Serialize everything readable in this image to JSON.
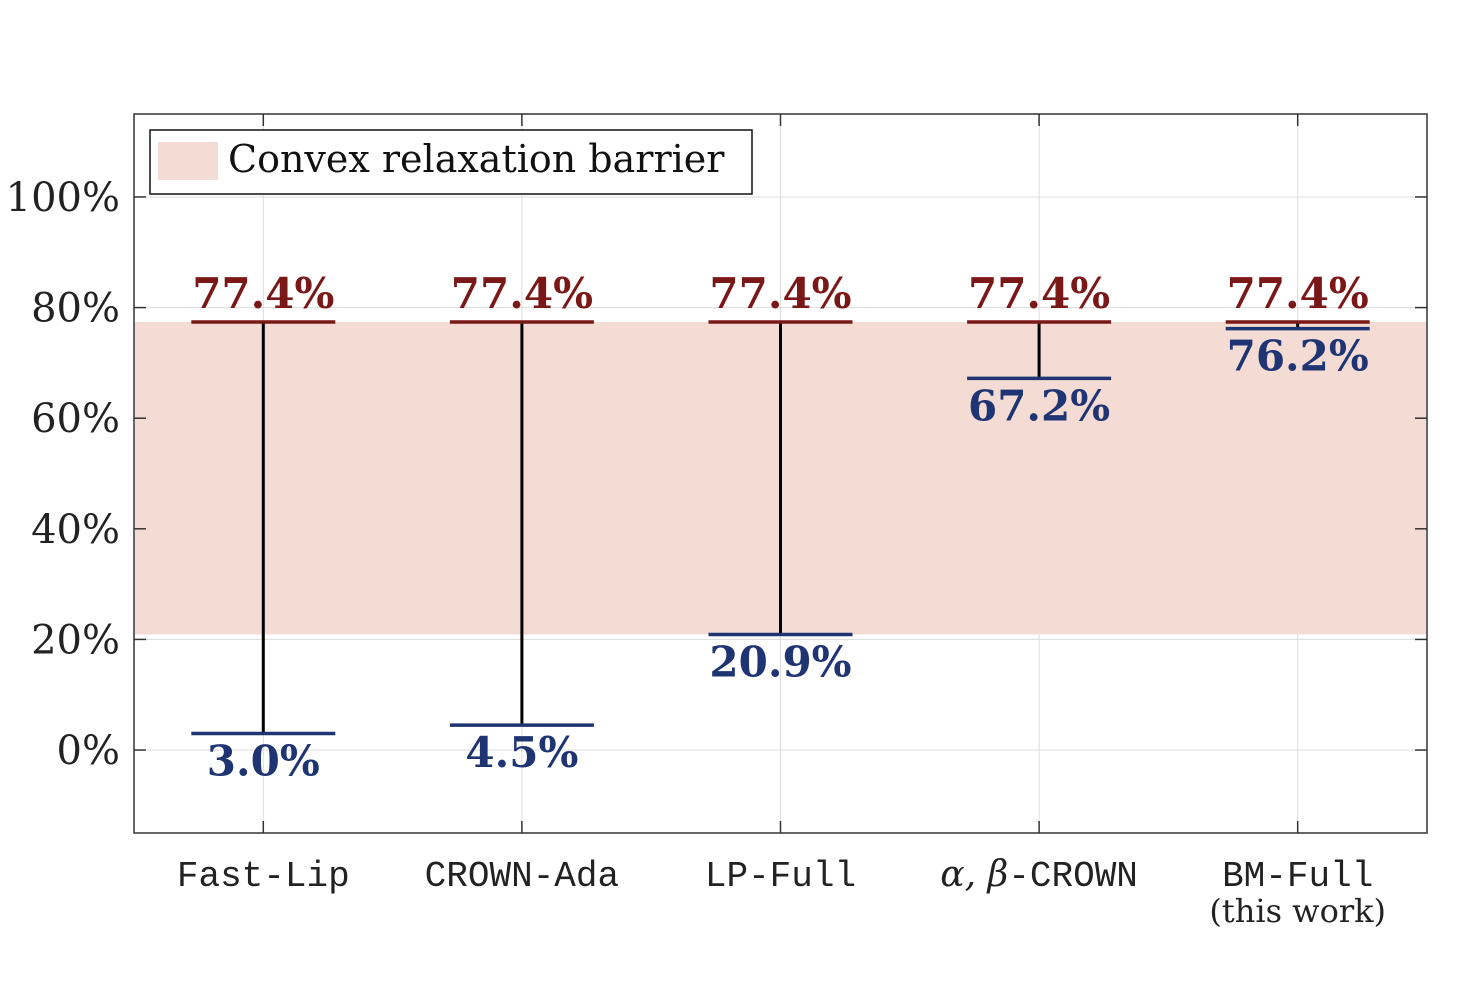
{
  "chart_data": {
    "type": "bar",
    "categories": [
      "Fast-Lip",
      "CROWN-Ada",
      "LP-Full",
      "α, β-CROWN",
      "BM-Full"
    ],
    "category_sublabels": [
      "",
      "",
      "",
      "",
      "(this work)"
    ],
    "series": [
      {
        "values": [
          77.4,
          77.4,
          77.4,
          77.4,
          77.4
        ],
        "labels": [
          "77.4%",
          "77.4%",
          "77.4%",
          "77.4%",
          "77.4%"
        ]
      },
      {
        "values": [
          3.0,
          4.5,
          20.9,
          67.2,
          76.2
        ],
        "labels": [
          "3.0%",
          "4.5%",
          "20.9%",
          "67.2%",
          "76.2%"
        ]
      }
    ],
    "band": {
      "label": "Convex relaxation barrier",
      "from": 20.9,
      "to": 77.4
    },
    "ylim": [
      -15,
      115
    ],
    "yticks": [
      0,
      20,
      40,
      60,
      80,
      100
    ],
    "ytick_labels": [
      "0%",
      "20%",
      "40%",
      "60%",
      "80%",
      "100%"
    ],
    "grid": true,
    "legend_position": "top-left",
    "colors": {
      "upper": "#7a1717",
      "lower": "#1f3473",
      "band": "#f4dcd4",
      "connector": "#000000",
      "grid": "#dcdcdc"
    }
  }
}
